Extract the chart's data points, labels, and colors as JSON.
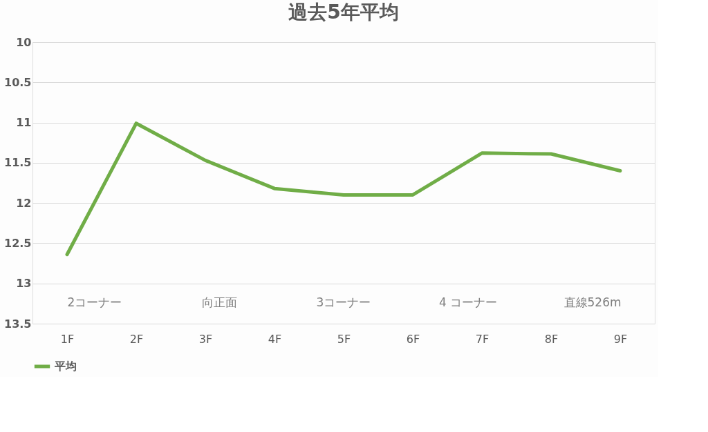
{
  "chart_data": {
    "type": "line",
    "title": "過去5年平均",
    "categories": [
      "1F",
      "2F",
      "3F",
      "4F",
      "5F",
      "6F",
      "7F",
      "8F",
      "9F"
    ],
    "series": [
      {
        "name": "平均",
        "color": "#70ad47",
        "values": [
          12.64,
          11.01,
          11.47,
          11.82,
          11.9,
          11.9,
          11.38,
          11.39,
          11.6
        ]
      }
    ],
    "ylim": [
      13.5,
      10
    ],
    "yticks": [
      10,
      10.5,
      11,
      11.5,
      12,
      12.5,
      13,
      13.5
    ],
    "grid": "y",
    "legend": "bottom",
    "marker": "none",
    "line_style": "solid",
    "annotations": [
      "2コーナー",
      "向正面",
      "3コーナー",
      "4 コーナー",
      "直線526m"
    ]
  }
}
